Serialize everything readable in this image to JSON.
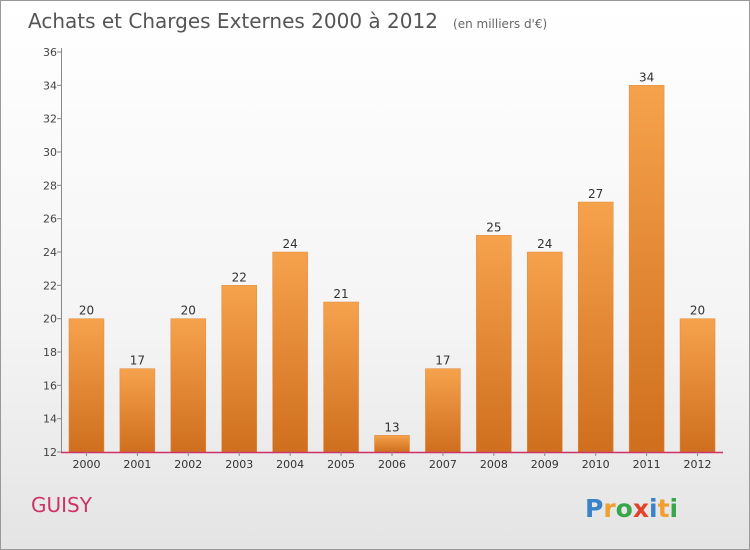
{
  "header": {
    "title": "Achats et Charges Externes 2000 à 2012",
    "unit": "(en milliers d'€)"
  },
  "footer": {
    "commune": "GUISY",
    "logo_text": "Proxiti"
  },
  "colors": {
    "bar_light": "#f6a24c",
    "bar_dark": "#cf6f1e",
    "commune": "#cc3366",
    "axis": "#cc3366"
  },
  "chart_data": {
    "type": "bar",
    "title": "Achats et Charges Externes 2000 à 2012",
    "subtitle": "(en milliers d'€)",
    "categories": [
      "2000",
      "2001",
      "2002",
      "2003",
      "2004",
      "2005",
      "2006",
      "2007",
      "2008",
      "2009",
      "2010",
      "2011",
      "2012"
    ],
    "values": [
      20,
      17,
      20,
      22,
      24,
      21,
      13,
      17,
      25,
      24,
      27,
      34,
      20
    ],
    "ylim": [
      12,
      36
    ],
    "yticks": [
      12,
      14,
      16,
      18,
      20,
      22,
      24,
      26,
      28,
      30,
      32,
      34,
      36
    ],
    "grid": false,
    "legend": "none"
  }
}
